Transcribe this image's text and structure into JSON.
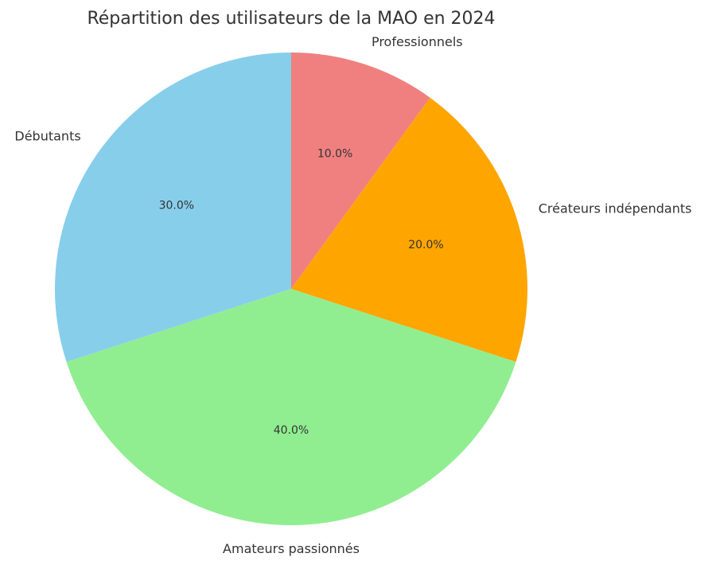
{
  "chart_data": {
    "type": "pie",
    "title": "Répartition des utilisateurs de la MAO en 2024",
    "start_angle_deg": 90,
    "direction": "clockwise",
    "slices": [
      {
        "label": "Professionnels",
        "value": 10.0,
        "pct_text": "10.0%",
        "color": "#F08080"
      },
      {
        "label": "Créateurs indépendants",
        "value": 20.0,
        "pct_text": "20.0%",
        "color": "#FFA500"
      },
      {
        "label": "Amateurs passionnés",
        "value": 40.0,
        "pct_text": "40.0%",
        "color": "#90EE90"
      },
      {
        "label": "Débutants",
        "value": 30.0,
        "pct_text": "30.0%",
        "color": "#87CEEB"
      }
    ]
  }
}
